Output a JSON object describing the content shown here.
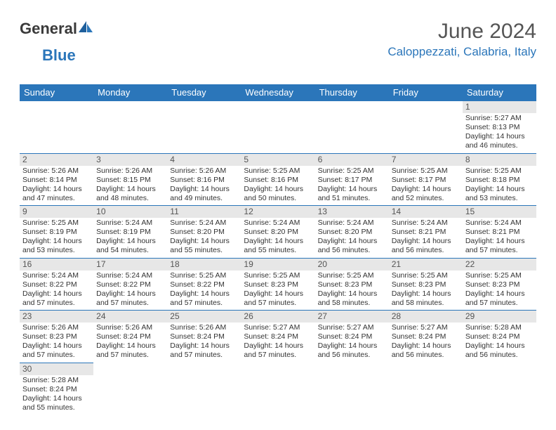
{
  "logo": {
    "text1": "General",
    "text2": "Blue"
  },
  "title": "June 2024",
  "subtitle": "Caloppezzati, Calabria, Italy",
  "colors": {
    "header_bg": "#2b76ba",
    "header_text": "#ffffff",
    "daynum_bg": "#e7e7e7",
    "border": "#2b76ba",
    "title_color": "#555555",
    "subtitle_color": "#2b76ba"
  },
  "weekdays": [
    "Sunday",
    "Monday",
    "Tuesday",
    "Wednesday",
    "Thursday",
    "Friday",
    "Saturday"
  ],
  "weeks": [
    [
      null,
      null,
      null,
      null,
      null,
      null,
      {
        "n": "1",
        "sr": "Sunrise: 5:27 AM",
        "ss": "Sunset: 8:13 PM",
        "d1": "Daylight: 14 hours",
        "d2": "and 46 minutes."
      }
    ],
    [
      {
        "n": "2",
        "sr": "Sunrise: 5:26 AM",
        "ss": "Sunset: 8:14 PM",
        "d1": "Daylight: 14 hours",
        "d2": "and 47 minutes."
      },
      {
        "n": "3",
        "sr": "Sunrise: 5:26 AM",
        "ss": "Sunset: 8:15 PM",
        "d1": "Daylight: 14 hours",
        "d2": "and 48 minutes."
      },
      {
        "n": "4",
        "sr": "Sunrise: 5:26 AM",
        "ss": "Sunset: 8:16 PM",
        "d1": "Daylight: 14 hours",
        "d2": "and 49 minutes."
      },
      {
        "n": "5",
        "sr": "Sunrise: 5:25 AM",
        "ss": "Sunset: 8:16 PM",
        "d1": "Daylight: 14 hours",
        "d2": "and 50 minutes."
      },
      {
        "n": "6",
        "sr": "Sunrise: 5:25 AM",
        "ss": "Sunset: 8:17 PM",
        "d1": "Daylight: 14 hours",
        "d2": "and 51 minutes."
      },
      {
        "n": "7",
        "sr": "Sunrise: 5:25 AM",
        "ss": "Sunset: 8:17 PM",
        "d1": "Daylight: 14 hours",
        "d2": "and 52 minutes."
      },
      {
        "n": "8",
        "sr": "Sunrise: 5:25 AM",
        "ss": "Sunset: 8:18 PM",
        "d1": "Daylight: 14 hours",
        "d2": "and 53 minutes."
      }
    ],
    [
      {
        "n": "9",
        "sr": "Sunrise: 5:25 AM",
        "ss": "Sunset: 8:19 PM",
        "d1": "Daylight: 14 hours",
        "d2": "and 53 minutes."
      },
      {
        "n": "10",
        "sr": "Sunrise: 5:24 AM",
        "ss": "Sunset: 8:19 PM",
        "d1": "Daylight: 14 hours",
        "d2": "and 54 minutes."
      },
      {
        "n": "11",
        "sr": "Sunrise: 5:24 AM",
        "ss": "Sunset: 8:20 PM",
        "d1": "Daylight: 14 hours",
        "d2": "and 55 minutes."
      },
      {
        "n": "12",
        "sr": "Sunrise: 5:24 AM",
        "ss": "Sunset: 8:20 PM",
        "d1": "Daylight: 14 hours",
        "d2": "and 55 minutes."
      },
      {
        "n": "13",
        "sr": "Sunrise: 5:24 AM",
        "ss": "Sunset: 8:20 PM",
        "d1": "Daylight: 14 hours",
        "d2": "and 56 minutes."
      },
      {
        "n": "14",
        "sr": "Sunrise: 5:24 AM",
        "ss": "Sunset: 8:21 PM",
        "d1": "Daylight: 14 hours",
        "d2": "and 56 minutes."
      },
      {
        "n": "15",
        "sr": "Sunrise: 5:24 AM",
        "ss": "Sunset: 8:21 PM",
        "d1": "Daylight: 14 hours",
        "d2": "and 57 minutes."
      }
    ],
    [
      {
        "n": "16",
        "sr": "Sunrise: 5:24 AM",
        "ss": "Sunset: 8:22 PM",
        "d1": "Daylight: 14 hours",
        "d2": "and 57 minutes."
      },
      {
        "n": "17",
        "sr": "Sunrise: 5:24 AM",
        "ss": "Sunset: 8:22 PM",
        "d1": "Daylight: 14 hours",
        "d2": "and 57 minutes."
      },
      {
        "n": "18",
        "sr": "Sunrise: 5:25 AM",
        "ss": "Sunset: 8:22 PM",
        "d1": "Daylight: 14 hours",
        "d2": "and 57 minutes."
      },
      {
        "n": "19",
        "sr": "Sunrise: 5:25 AM",
        "ss": "Sunset: 8:23 PM",
        "d1": "Daylight: 14 hours",
        "d2": "and 57 minutes."
      },
      {
        "n": "20",
        "sr": "Sunrise: 5:25 AM",
        "ss": "Sunset: 8:23 PM",
        "d1": "Daylight: 14 hours",
        "d2": "and 58 minutes."
      },
      {
        "n": "21",
        "sr": "Sunrise: 5:25 AM",
        "ss": "Sunset: 8:23 PM",
        "d1": "Daylight: 14 hours",
        "d2": "and 58 minutes."
      },
      {
        "n": "22",
        "sr": "Sunrise: 5:25 AM",
        "ss": "Sunset: 8:23 PM",
        "d1": "Daylight: 14 hours",
        "d2": "and 57 minutes."
      }
    ],
    [
      {
        "n": "23",
        "sr": "Sunrise: 5:26 AM",
        "ss": "Sunset: 8:23 PM",
        "d1": "Daylight: 14 hours",
        "d2": "and 57 minutes."
      },
      {
        "n": "24",
        "sr": "Sunrise: 5:26 AM",
        "ss": "Sunset: 8:24 PM",
        "d1": "Daylight: 14 hours",
        "d2": "and 57 minutes."
      },
      {
        "n": "25",
        "sr": "Sunrise: 5:26 AM",
        "ss": "Sunset: 8:24 PM",
        "d1": "Daylight: 14 hours",
        "d2": "and 57 minutes."
      },
      {
        "n": "26",
        "sr": "Sunrise: 5:27 AM",
        "ss": "Sunset: 8:24 PM",
        "d1": "Daylight: 14 hours",
        "d2": "and 57 minutes."
      },
      {
        "n": "27",
        "sr": "Sunrise: 5:27 AM",
        "ss": "Sunset: 8:24 PM",
        "d1": "Daylight: 14 hours",
        "d2": "and 56 minutes."
      },
      {
        "n": "28",
        "sr": "Sunrise: 5:27 AM",
        "ss": "Sunset: 8:24 PM",
        "d1": "Daylight: 14 hours",
        "d2": "and 56 minutes."
      },
      {
        "n": "29",
        "sr": "Sunrise: 5:28 AM",
        "ss": "Sunset: 8:24 PM",
        "d1": "Daylight: 14 hours",
        "d2": "and 56 minutes."
      }
    ],
    [
      {
        "n": "30",
        "sr": "Sunrise: 5:28 AM",
        "ss": "Sunset: 8:24 PM",
        "d1": "Daylight: 14 hours",
        "d2": "and 55 minutes."
      },
      null,
      null,
      null,
      null,
      null,
      null
    ]
  ]
}
